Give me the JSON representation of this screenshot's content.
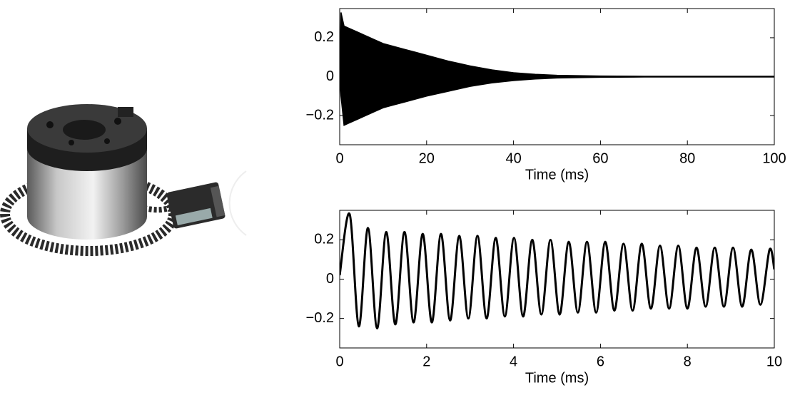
{
  "chart_data": [
    {
      "type": "band",
      "xlabel": "Time (ms)",
      "x": [
        0,
        0.3,
        1,
        2,
        4,
        6,
        8,
        10,
        12.5,
        15,
        17.5,
        20,
        25,
        30,
        35,
        40,
        45,
        50,
        60,
        70,
        80,
        90,
        100
      ],
      "series": [
        {
          "color": "#000000",
          "values": [
            0,
            0.33,
            0.26,
            0.25,
            0.23,
            0.21,
            0.19,
            0.17,
            0.155,
            0.14,
            0.125,
            0.11,
            0.08,
            0.055,
            0.035,
            0.02,
            0.012,
            0.007,
            0.003,
            0.002,
            0.002,
            0.002,
            0.002
          ]
        },
        {
          "color": "#000000",
          "values": [
            0,
            -0.1,
            -0.25,
            -0.24,
            -0.22,
            -0.2,
            -0.18,
            -0.16,
            -0.145,
            -0.13,
            -0.115,
            -0.1,
            -0.075,
            -0.05,
            -0.032,
            -0.02,
            -0.012,
            -0.007,
            -0.003,
            -0.002,
            -0.002,
            -0.002,
            -0.002
          ]
        }
      ],
      "xlim": [
        0,
        100
      ],
      "xticks": [
        0,
        20,
        40,
        60,
        80,
        100
      ],
      "ylim": [
        -0.35,
        0.35
      ],
      "yticks": [
        {
          "value": -0.2,
          "label": "−0.2"
        },
        0,
        0.2
      ]
    },
    {
      "type": "line",
      "xlabel": "Time (ms)",
      "x": [
        0,
        0.23,
        0.44,
        0.65,
        0.86,
        1.07,
        1.28,
        1.49,
        1.7,
        1.91,
        2.12,
        2.33,
        2.54,
        2.75,
        2.96,
        3.17,
        3.38,
        3.59,
        3.8,
        4.01,
        4.22,
        4.43,
        4.64,
        4.85,
        5.06,
        5.27,
        5.48,
        5.69,
        5.9,
        6.11,
        6.32,
        6.53,
        6.74,
        6.95,
        7.16,
        7.37,
        7.58,
        7.79,
        8.0,
        8.21,
        8.42,
        8.63,
        8.84,
        9.05,
        9.26,
        9.47,
        9.68,
        9.89,
        10
      ],
      "series": [
        {
          "color": "#000000",
          "values": [
            0.02,
            0.33,
            -0.24,
            0.26,
            -0.25,
            0.24,
            -0.23,
            0.24,
            -0.22,
            0.23,
            -0.22,
            0.23,
            -0.21,
            0.22,
            -0.2,
            0.22,
            -0.2,
            0.21,
            -0.19,
            0.21,
            -0.19,
            0.2,
            -0.18,
            0.2,
            -0.18,
            0.19,
            -0.17,
            0.19,
            -0.17,
            0.19,
            -0.16,
            0.18,
            -0.16,
            0.18,
            -0.15,
            0.17,
            -0.15,
            0.17,
            -0.15,
            0.16,
            -0.14,
            0.16,
            -0.14,
            0.16,
            -0.14,
            0.15,
            -0.13,
            0.15,
            0.05
          ]
        }
      ],
      "xlim": [
        0,
        10
      ],
      "xticks": [
        0,
        2,
        4,
        6,
        8,
        10
      ],
      "ylim": [
        -0.35,
        0.35
      ],
      "yticks": [
        {
          "value": -0.2,
          "label": "−0.2"
        },
        0,
        0.2
      ]
    }
  ]
}
